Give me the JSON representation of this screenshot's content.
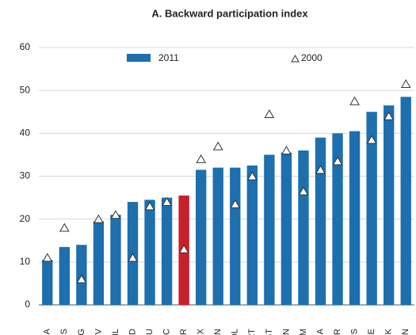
{
  "chart_data": {
    "type": "bar",
    "title": "A. Backward participation index",
    "categories": [
      "BRA",
      "RUS",
      "ARG",
      "HRV",
      "CHL",
      "IND",
      "ROU",
      "GRC",
      "TUR",
      "MEX",
      "CHN",
      "POL",
      "PRT",
      "EST",
      "SVN",
      "VNM",
      "THA",
      "BGR",
      "MYS",
      "CZE",
      "SVK",
      "HUN"
    ],
    "series": [
      {
        "name": "2011",
        "color": "#1d6fae",
        "colors": [
          "#1d6fae",
          "#1d6fae",
          "#1d6fae",
          "#1d6fae",
          "#1d6fae",
          "#1d6fae",
          "#1d6fae",
          "#1d6fae",
          "#c8202a",
          "#1d6fae",
          "#1d6fae",
          "#1d6fae",
          "#1d6fae",
          "#1d6fae",
          "#1d6fae",
          "#1d6fae",
          "#1d6fae",
          "#1d6fae",
          "#1d6fae",
          "#1d6fae",
          "#1d6fae",
          "#1d6fae"
        ],
        "values": [
          10.5,
          13.5,
          14,
          19.5,
          21,
          24,
          24.5,
          25,
          25.5,
          31.5,
          32,
          32,
          32.5,
          35,
          35.5,
          36,
          39,
          40,
          40.5,
          45,
          46.5,
          48.5
        ]
      },
      {
        "name": "2000",
        "marker": "triangle",
        "color": "#333333",
        "values": [
          11,
          18,
          6,
          20,
          21,
          11,
          23,
          24,
          13,
          34,
          37,
          23.5,
          30,
          44.5,
          36,
          26.5,
          31.5,
          33.5,
          47.5,
          38.5,
          44,
          51.5
        ]
      }
    ],
    "ylim": [
      0,
      60
    ],
    "yticks": [
      0,
      10,
      20,
      30,
      40,
      50,
      60
    ],
    "grid": true
  }
}
